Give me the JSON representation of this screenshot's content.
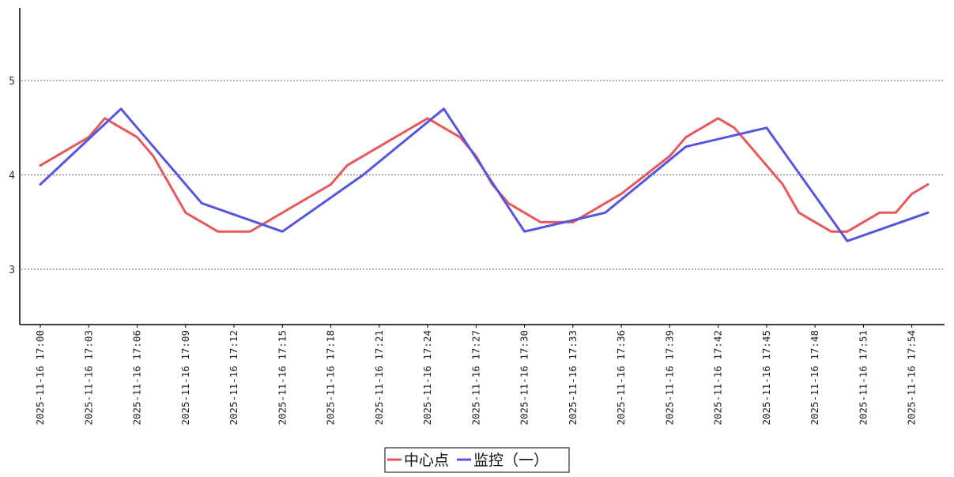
{
  "chart_data": {
    "type": "line",
    "title": "",
    "xlabel": "",
    "ylabel": "",
    "ylim": [
      2.4,
      5.8
    ],
    "yticks": [
      3,
      4,
      5
    ],
    "grid": "horizontal-dotted",
    "legend_position": "bottom-center",
    "x_tick_labels": [
      "2025-11-16 17:00",
      "2025-11-16 17:03",
      "2025-11-16 17:06",
      "2025-11-16 17:09",
      "2025-11-16 17:12",
      "2025-11-16 17:15",
      "2025-11-16 17:18",
      "2025-11-16 17:21",
      "2025-11-16 17:24",
      "2025-11-16 17:27",
      "2025-11-16 17:30",
      "2025-11-16 17:33",
      "2025-11-16 17:36",
      "2025-11-16 17:39",
      "2025-11-16 17:42",
      "2025-11-16 17:45",
      "2025-11-16 17:48",
      "2025-11-16 17:51",
      "2025-11-16 17:54"
    ],
    "series": [
      {
        "name": "中心点",
        "color": "#e8585a",
        "points": [
          {
            "x": "17:00",
            "y": 4.1
          },
          {
            "x": "17:03",
            "y": 4.4
          },
          {
            "x": "17:04",
            "y": 4.6
          },
          {
            "x": "17:05",
            "y": 4.5
          },
          {
            "x": "17:06",
            "y": 4.4
          },
          {
            "x": "17:07",
            "y": 4.2
          },
          {
            "x": "17:09",
            "y": 3.6
          },
          {
            "x": "17:11",
            "y": 3.4
          },
          {
            "x": "17:13",
            "y": 3.4
          },
          {
            "x": "17:18",
            "y": 3.9
          },
          {
            "x": "17:19",
            "y": 4.1
          },
          {
            "x": "17:22",
            "y": 4.4
          },
          {
            "x": "17:24",
            "y": 4.6
          },
          {
            "x": "17:25",
            "y": 4.5
          },
          {
            "x": "17:26",
            "y": 4.4
          },
          {
            "x": "17:27",
            "y": 4.2
          },
          {
            "x": "17:28",
            "y": 3.9
          },
          {
            "x": "17:29",
            "y": 3.7
          },
          {
            "x": "17:31",
            "y": 3.5
          },
          {
            "x": "17:33",
            "y": 3.5
          },
          {
            "x": "17:36",
            "y": 3.8
          },
          {
            "x": "17:39",
            "y": 4.2
          },
          {
            "x": "17:40",
            "y": 4.4
          },
          {
            "x": "17:42",
            "y": 4.6
          },
          {
            "x": "17:43",
            "y": 4.5
          },
          {
            "x": "17:44",
            "y": 4.3
          },
          {
            "x": "17:46",
            "y": 3.9
          },
          {
            "x": "17:47",
            "y": 3.6
          },
          {
            "x": "17:49",
            "y": 3.4
          },
          {
            "x": "17:50",
            "y": 3.4
          },
          {
            "x": "17:52",
            "y": 3.6
          },
          {
            "x": "17:53",
            "y": 3.6
          },
          {
            "x": "17:54",
            "y": 3.8
          },
          {
            "x": "17:55",
            "y": 3.9
          }
        ]
      },
      {
        "name": "监控（一）",
        "color": "#5555e0",
        "points": [
          {
            "x": "17:00",
            "y": 3.9
          },
          {
            "x": "17:05",
            "y": 4.7
          },
          {
            "x": "17:10",
            "y": 3.7
          },
          {
            "x": "17:15",
            "y": 3.4
          },
          {
            "x": "17:20",
            "y": 4.0
          },
          {
            "x": "17:25",
            "y": 4.7
          },
          {
            "x": "17:30",
            "y": 3.4
          },
          {
            "x": "17:35",
            "y": 3.6
          },
          {
            "x": "17:40",
            "y": 4.3
          },
          {
            "x": "17:45",
            "y": 4.5
          },
          {
            "x": "17:50",
            "y": 3.3
          },
          {
            "x": "17:55",
            "y": 3.6
          }
        ]
      }
    ]
  }
}
